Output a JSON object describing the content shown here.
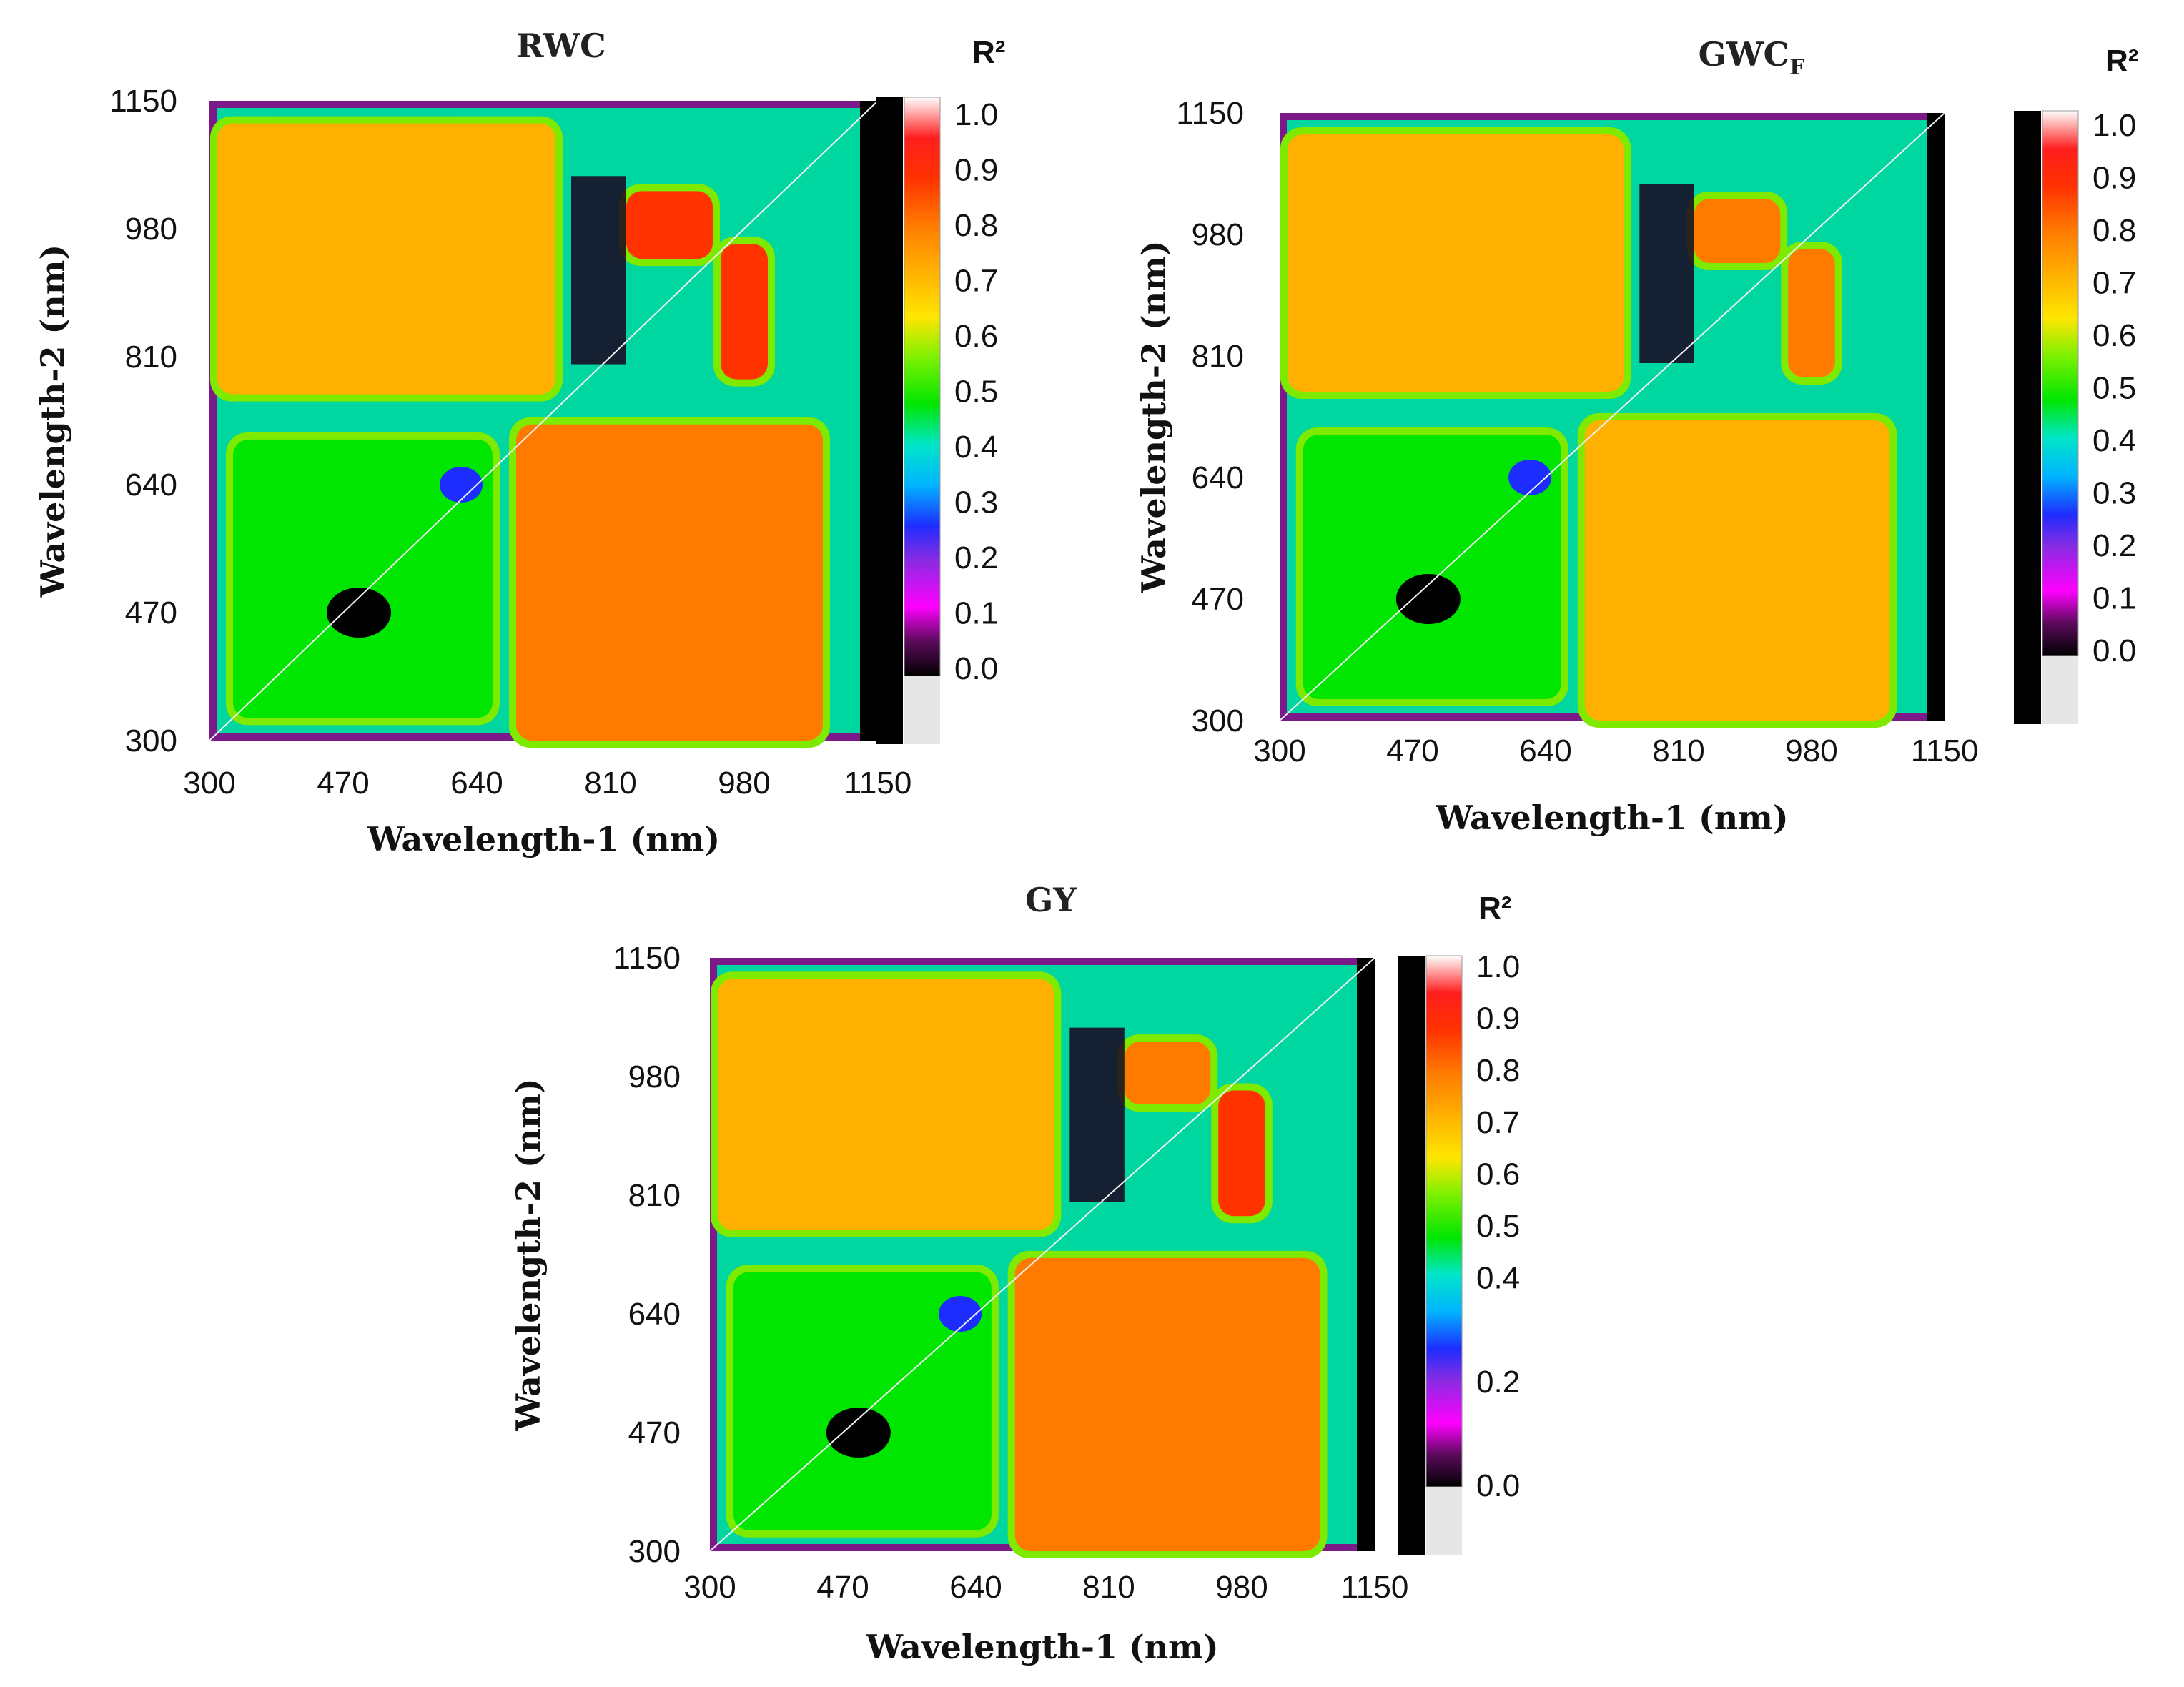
{
  "chart_data": [
    {
      "type": "heatmap",
      "title": "RWC",
      "title_subscript": "",
      "xlabel": "Wavelength-1 (nm)",
      "ylabel": "Wavelength-2 (nm)",
      "x_ticks": [
        300,
        470,
        640,
        810,
        980,
        1150
      ],
      "y_ticks": [
        300,
        470,
        640,
        810,
        980,
        1150
      ],
      "xlim": [
        300,
        1150
      ],
      "ylim": [
        300,
        1150
      ],
      "colorbar_label": "R²",
      "colorbar_ticks": [
        "1.0",
        "0.9",
        "0.8",
        "0.7",
        "0.6",
        "0.5",
        "0.4",
        "0.3",
        "0.2",
        "0.1",
        "0.0"
      ],
      "colorbar_values": [
        1.0,
        0.9,
        0.8,
        0.7,
        0.6,
        0.5,
        0.4,
        0.3,
        0.2,
        0.1,
        0.0
      ],
      "regions": [
        {
          "name": "vis-nir-block",
          "x": [
            690,
            1080
          ],
          "y": [
            300,
            720
          ],
          "r2": 0.78
        },
        {
          "name": "nir-vis-block",
          "x": [
            310,
            740
          ],
          "y": [
            760,
            1120
          ],
          "r2": 0.72
        },
        {
          "name": "nir-upper-block",
          "x": [
            830,
            940
          ],
          "y": [
            940,
            1030
          ],
          "r2": 0.85
        },
        {
          "name": "nir-side-block",
          "x": [
            950,
            1010
          ],
          "y": [
            780,
            960
          ],
          "r2": 0.85
        },
        {
          "name": "vis-cluster",
          "x": [
            330,
            660
          ],
          "y": [
            330,
            700
          ],
          "r2": 0.5
        }
      ]
    },
    {
      "type": "heatmap",
      "title": "GWC",
      "title_subscript": "F",
      "xlabel": "Wavelength-1 (nm)",
      "ylabel": "Wavelength-2 (nm)",
      "x_ticks": [
        300,
        470,
        640,
        810,
        980,
        1150
      ],
      "y_ticks": [
        300,
        470,
        640,
        810,
        980,
        1150
      ],
      "xlim": [
        300,
        1150
      ],
      "ylim": [
        300,
        1150
      ],
      "colorbar_label": "R²",
      "colorbar_ticks": [
        "1.0",
        "0.9",
        "0.8",
        "0.7",
        "0.6",
        "0.5",
        "0.4",
        "0.3",
        "0.2",
        "0.1",
        "0.0"
      ],
      "colorbar_values": [
        1.0,
        0.9,
        0.8,
        0.7,
        0.6,
        0.5,
        0.4,
        0.3,
        0.2,
        0.1,
        0.0
      ],
      "regions": [
        {
          "name": "vis-nir-block",
          "x": [
            690,
            1080
          ],
          "y": [
            300,
            720
          ],
          "r2": 0.72
        },
        {
          "name": "nir-vis-block",
          "x": [
            310,
            740
          ],
          "y": [
            760,
            1120
          ],
          "r2": 0.7
        },
        {
          "name": "nir-upper-block",
          "x": [
            830,
            940
          ],
          "y": [
            940,
            1030
          ],
          "r2": 0.75
        },
        {
          "name": "nir-side-block",
          "x": [
            950,
            1010
          ],
          "y": [
            780,
            960
          ],
          "r2": 0.75
        },
        {
          "name": "vis-cluster",
          "x": [
            330,
            660
          ],
          "y": [
            330,
            700
          ],
          "r2": 0.5
        }
      ]
    },
    {
      "type": "heatmap",
      "title": "GY",
      "title_subscript": "",
      "xlabel": "Wavelength-1 (nm)",
      "ylabel": "Wavelength-2 (nm)",
      "x_ticks": [
        300,
        470,
        640,
        810,
        980,
        1150
      ],
      "y_ticks": [
        300,
        470,
        640,
        810,
        980,
        1150
      ],
      "xlim": [
        300,
        1150
      ],
      "ylim": [
        300,
        1150
      ],
      "colorbar_label": "R²",
      "colorbar_ticks": [
        "1.0",
        "0.9",
        "0.8",
        "0.7",
        "0.6",
        "0.5",
        "0.4",
        "0.2",
        "0.0"
      ],
      "colorbar_values": [
        1.0,
        0.9,
        0.8,
        0.7,
        0.6,
        0.5,
        0.4,
        0.2,
        0.0
      ],
      "regions": [
        {
          "name": "vis-nir-block",
          "x": [
            690,
            1080
          ],
          "y": [
            300,
            720
          ],
          "r2": 0.76
        },
        {
          "name": "nir-vis-block",
          "x": [
            310,
            740
          ],
          "y": [
            760,
            1120
          ],
          "r2": 0.72
        },
        {
          "name": "nir-upper-block",
          "x": [
            830,
            940
          ],
          "y": [
            940,
            1030
          ],
          "r2": 0.8
        },
        {
          "name": "nir-side-block",
          "x": [
            950,
            1010
          ],
          "y": [
            780,
            960
          ],
          "r2": 0.85
        },
        {
          "name": "vis-cluster",
          "x": [
            330,
            660
          ],
          "y": [
            330,
            700
          ],
          "r2": 0.5
        }
      ]
    }
  ]
}
